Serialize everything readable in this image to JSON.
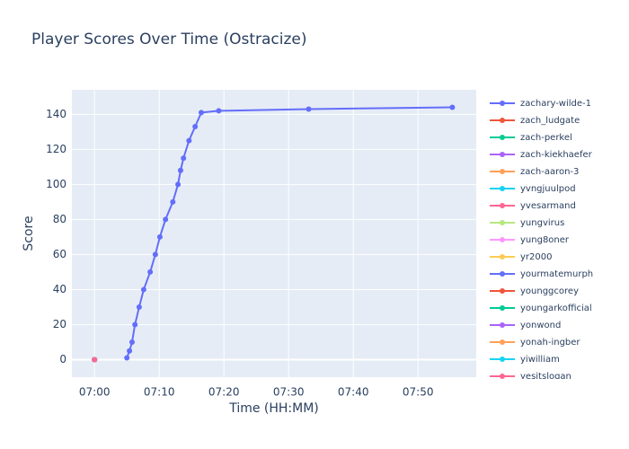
{
  "chart_data": {
    "type": "line",
    "title": "Player Scores Over Time (Ostracize)",
    "x_label": "Time (HH:MM)",
    "y_label": "Score",
    "xlim": [
      416.5,
      479
    ],
    "ylim": [
      -10,
      154
    ],
    "xticks": [
      {
        "value": 420,
        "label": "07:00"
      },
      {
        "value": 430,
        "label": "07:10"
      },
      {
        "value": 440,
        "label": "07:20"
      },
      {
        "value": 450,
        "label": "07:30"
      },
      {
        "value": 460,
        "label": "07:40"
      },
      {
        "value": 470,
        "label": "07:50"
      }
    ],
    "yticks": [
      0,
      20,
      40,
      60,
      80,
      100,
      120,
      140
    ],
    "grid": true,
    "series": [
      {
        "name": "zachary-wilde-1",
        "color": "#636efa",
        "x": [
          425,
          425.4,
          425.8,
          426.25,
          426.9,
          427.6,
          428.6,
          429.4,
          430.1,
          430.97,
          432.1,
          432.9,
          433.3,
          433.75,
          434.6,
          435.55,
          436.5,
          439.2,
          453.1,
          475.3
        ],
        "values": [
          1,
          5,
          10,
          20,
          30,
          40,
          50,
          60,
          70,
          80,
          90,
          100,
          108,
          115,
          125,
          133,
          141,
          142,
          143,
          144
        ]
      },
      {
        "name": "zach_ludgate",
        "color": "#EF553B",
        "x": [
          420
        ],
        "values": [
          0
        ]
      },
      {
        "name": "zach-perkel",
        "color": "#00cc96",
        "x": [
          420
        ],
        "values": [
          0
        ]
      },
      {
        "name": "zach-kiekhaefer",
        "color": "#ab63fa",
        "x": [
          420
        ],
        "values": [
          0
        ]
      },
      {
        "name": "zach-aaron-3",
        "color": "#FFA15A",
        "x": [
          420
        ],
        "values": [
          0
        ]
      },
      {
        "name": "yvngjuulpod",
        "color": "#19d3f3",
        "x": [
          420
        ],
        "values": [
          0
        ]
      },
      {
        "name": "yvesarmand",
        "color": "#FF6692",
        "x": [
          420
        ],
        "values": [
          0
        ]
      },
      {
        "name": "yungvirus",
        "color": "#B6E880",
        "x": [
          420
        ],
        "values": [
          0
        ]
      },
      {
        "name": "yung8oner",
        "color": "#FF97FF",
        "x": [
          420
        ],
        "values": [
          0
        ]
      },
      {
        "name": "yr2000",
        "color": "#FECB52",
        "x": [
          420
        ],
        "values": [
          0
        ]
      },
      {
        "name": "yourmatemurph",
        "color": "#636efa",
        "x": [
          420
        ],
        "values": [
          0
        ]
      },
      {
        "name": "younggcorey",
        "color": "#EF553B",
        "x": [
          420
        ],
        "values": [
          0
        ]
      },
      {
        "name": "youngarkofficial",
        "color": "#00cc96",
        "x": [
          420
        ],
        "values": [
          0
        ]
      },
      {
        "name": "yonwond",
        "color": "#ab63fa",
        "x": [
          420
        ],
        "values": [
          0
        ]
      },
      {
        "name": "yonah-ingber",
        "color": "#FFA15A",
        "x": [
          420
        ],
        "values": [
          0
        ]
      },
      {
        "name": "yiwilliam",
        "color": "#19d3f3",
        "x": [
          420
        ],
        "values": [
          0
        ]
      },
      {
        "name": "yesitslogan",
        "color": "#FF6692",
        "x": [
          420
        ],
        "values": [
          0
        ]
      }
    ]
  }
}
